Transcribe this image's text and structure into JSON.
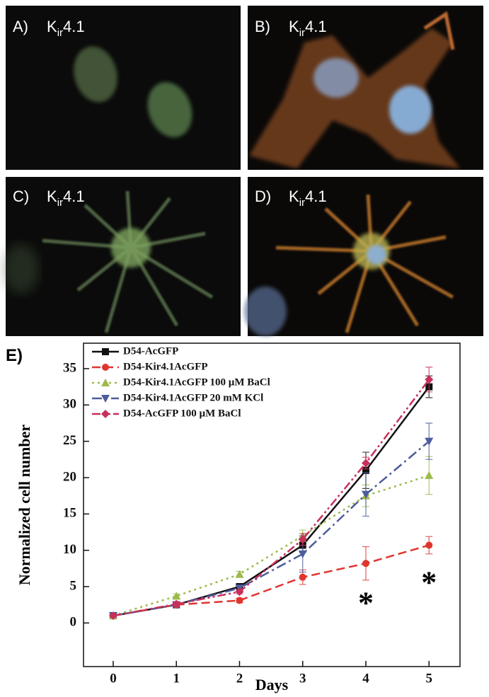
{
  "panels": [
    {
      "letter": "A)",
      "base": "K",
      "sub": "ir",
      "rest": "4.1"
    },
    {
      "letter": "B)",
      "base": "K",
      "sub": "ir",
      "rest": "4.1"
    },
    {
      "letter": "C)",
      "base": "K",
      "sub": "ir",
      "rest": "4.1"
    },
    {
      "letter": "D)",
      "base": "K",
      "sub": "ir",
      "rest": "4.1"
    }
  ],
  "chart_data": {
    "type": "line",
    "panel_label": "E)",
    "x_label": "Days",
    "y_label": "Normalized cell number",
    "x": [
      0,
      1,
      2,
      3,
      4,
      5
    ],
    "xlim": [
      -0.47,
      5.49
    ],
    "xticks": [
      0,
      1,
      2,
      3,
      4,
      5
    ],
    "ylim": [
      -6,
      38.5
    ],
    "yticks": [
      0,
      5,
      10,
      15,
      20,
      25,
      30,
      35
    ],
    "series": [
      {
        "name": "D54-AcGFP",
        "color": "#111111",
        "marker": "square",
        "dash": "solid",
        "values": [
          1,
          2.5,
          5,
          10.7,
          21,
          32.5
        ],
        "errors": [
          0.2,
          0.3,
          0.4,
          1,
          2.5,
          1.5
        ]
      },
      {
        "name": "D54-Kir4.1AcGFP",
        "color": "#e0352f",
        "marker": "circle",
        "dash": "dashed",
        "values": [
          1,
          2.5,
          3.1,
          6.3,
          8.2,
          10.7
        ],
        "errors": [
          0.2,
          0.4,
          0.3,
          1,
          2.3,
          1.2
        ]
      },
      {
        "name": "D54-Kir4.1AcGFP 100 µM BaCl",
        "color": "#9bbb4a",
        "marker": "triangle",
        "dash": "dotted",
        "values": [
          1,
          3.7,
          6.7,
          12,
          17.5,
          20.3
        ],
        "errors": [
          0.2,
          0.3,
          0.4,
          0.8,
          1.5,
          2.6
        ]
      },
      {
        "name": "D54-Kir4.1AcGFP 20 mM KCl",
        "color": "#4d5c9c",
        "marker": "triangle-down",
        "dash": "dashdot",
        "values": [
          1,
          2.5,
          4.8,
          9.5,
          17.7,
          25
        ],
        "errors": [
          0.2,
          0.3,
          0.3,
          2.5,
          3,
          2.5
        ]
      },
      {
        "name": "D54-AcGFP 100 µM BaCl",
        "color": "#c8305a",
        "marker": "diamond",
        "dash": "dashdotdot",
        "values": [
          1,
          2.6,
          4.3,
          11.5,
          22,
          33.5
        ],
        "errors": [
          0.2,
          0.3,
          0.3,
          0.8,
          0.8,
          1.7
        ]
      }
    ],
    "annotations": [
      {
        "text": "*",
        "x": 4,
        "y": 3.5
      },
      {
        "text": "*",
        "x": 5,
        "y": 6.3
      }
    ]
  }
}
